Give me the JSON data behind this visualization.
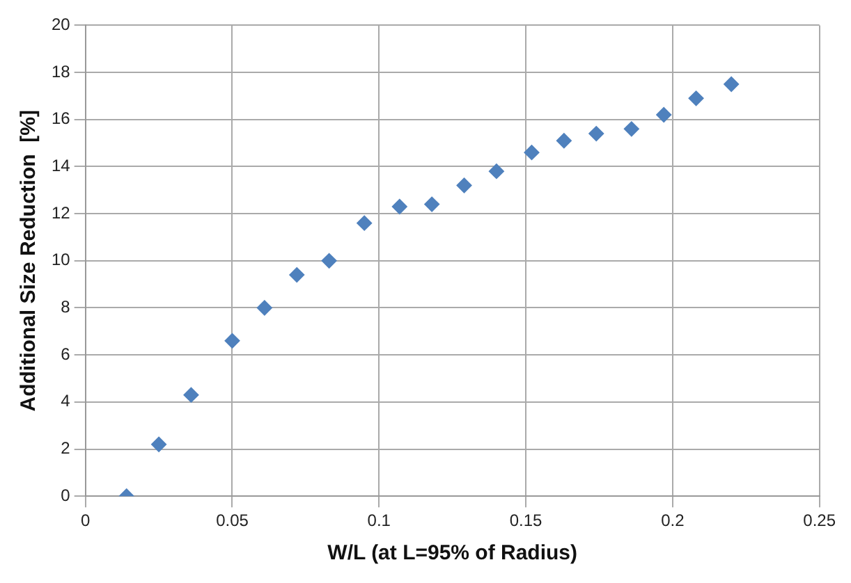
{
  "chart_data": {
    "type": "scatter",
    "xlabel": "W/L (at L=95% of Radius)",
    "ylabel": "Additional Size Reduction  [%]",
    "series": [
      {
        "color": "#4f81bd",
        "x": [
          0.014,
          0.025,
          0.036,
          0.05,
          0.061,
          0.072,
          0.083,
          0.095,
          0.107,
          0.118,
          0.129,
          0.14,
          0.152,
          0.163,
          0.174,
          0.186,
          0.197,
          0.208,
          0.22
        ],
        "values": [
          0,
          2.2,
          4.3,
          6.6,
          8,
          9.4,
          10,
          11.6,
          12.3,
          12.4,
          13.2,
          13.8,
          14.6,
          15.1,
          15.4,
          15.6,
          16.2,
          16.9,
          17.5
        ]
      }
    ],
    "xlim": [
      0,
      0.25
    ],
    "xticks": [
      0,
      0.05,
      0.1,
      0.15,
      0.2,
      0.25
    ],
    "ylim": [
      0,
      20
    ],
    "yticks": [
      0,
      2,
      4,
      6,
      8,
      10,
      12,
      14,
      16,
      18,
      20
    ],
    "grid": true,
    "legend": false,
    "marker": "diamond"
  }
}
